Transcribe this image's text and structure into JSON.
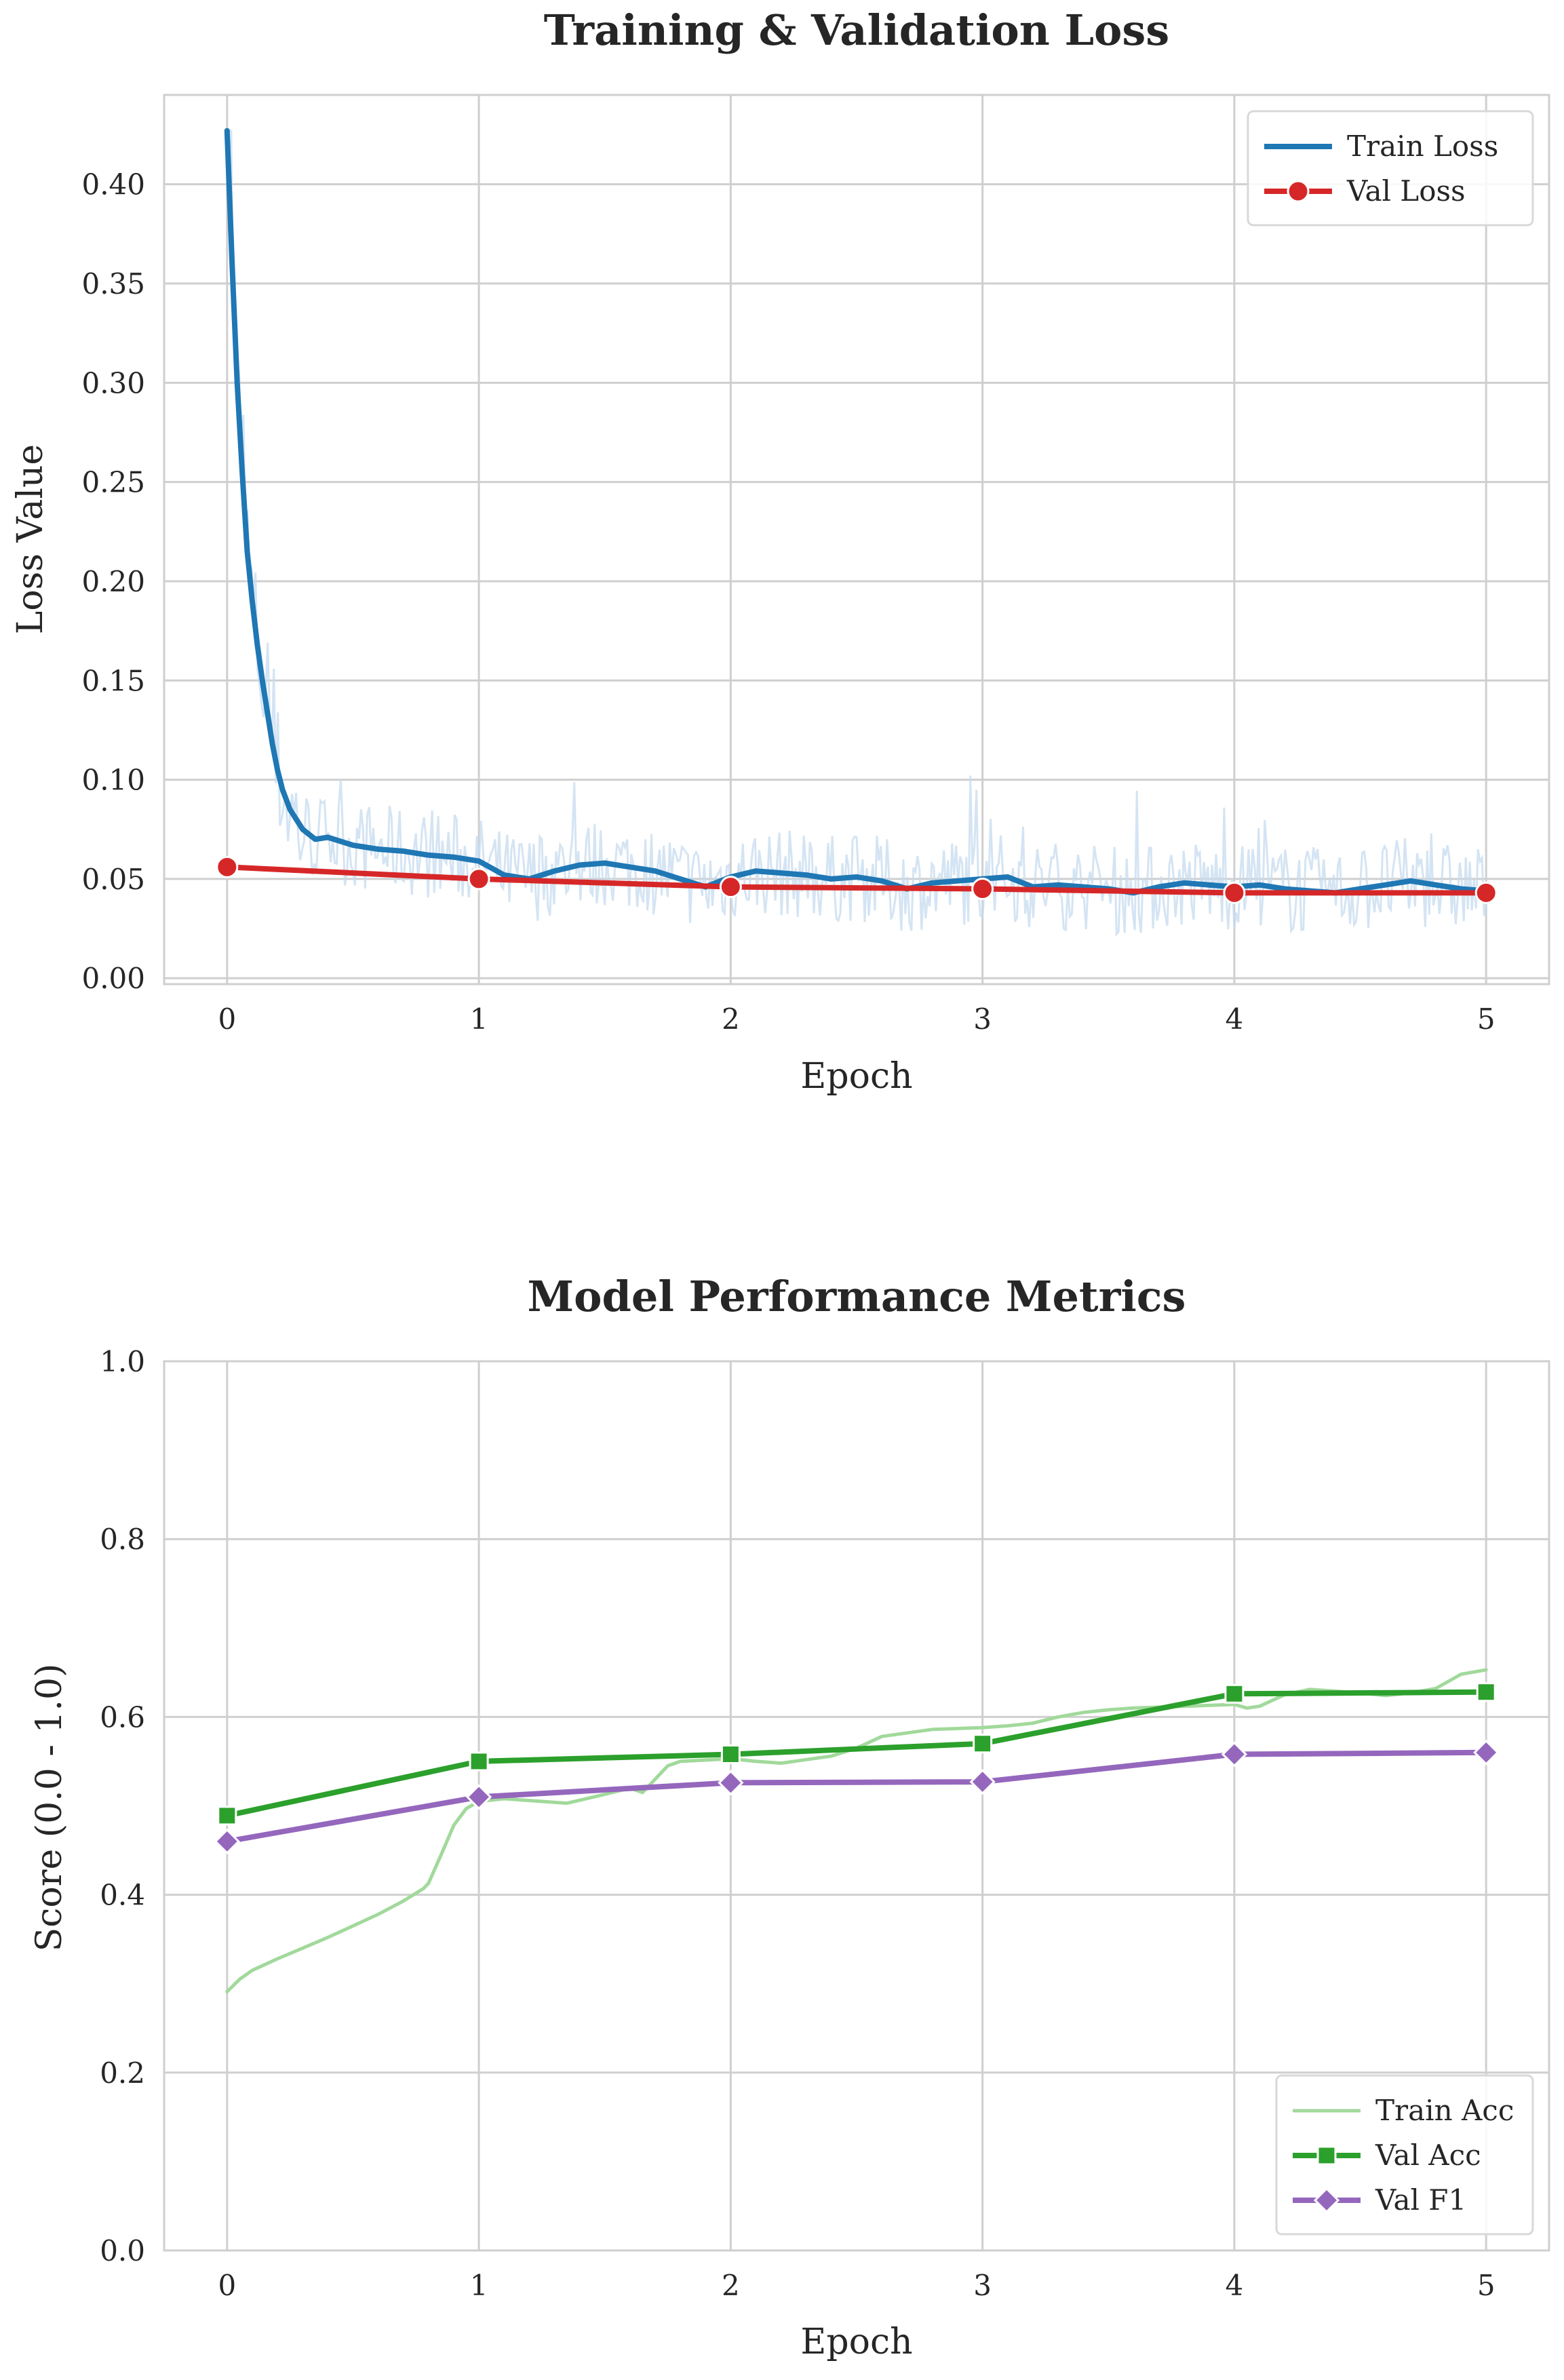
{
  "chart_data": [
    {
      "type": "line",
      "title": "Training & Validation Loss",
      "xlabel": "Epoch",
      "ylabel": "Loss Value",
      "xlim": [
        -0.25,
        5.25
      ],
      "ylim": [
        -0.003,
        0.445
      ],
      "xticks": [
        "0",
        "1",
        "2",
        "3",
        "4",
        "5"
      ],
      "yticks": [
        "0.00",
        "0.05",
        "0.10",
        "0.15",
        "0.20",
        "0.25",
        "0.30",
        "0.35",
        "0.40"
      ],
      "grid": true,
      "legend": "top-right",
      "series": [
        {
          "name": "Train Loss",
          "color": "#1f77b4",
          "marker": "none",
          "raw_band_color": "#c6dbef",
          "x": [
            0,
            0.02,
            0.04,
            0.06,
            0.08,
            0.1,
            0.12,
            0.14,
            0.16,
            0.18,
            0.2,
            0.22,
            0.25,
            0.3,
            0.35,
            0.4,
            0.5,
            0.6,
            0.7,
            0.8,
            0.9,
            1.0,
            1.1,
            1.2,
            1.3,
            1.4,
            1.5,
            1.6,
            1.7,
            1.8,
            1.9,
            2.0,
            2.1,
            2.2,
            2.3,
            2.4,
            2.5,
            2.6,
            2.7,
            2.8,
            2.9,
            3.0,
            3.1,
            3.2,
            3.3,
            3.4,
            3.5,
            3.6,
            3.7,
            3.8,
            3.9,
            4.0,
            4.1,
            4.2,
            4.3,
            4.4,
            4.5,
            4.6,
            4.7,
            4.8,
            4.9,
            5.0
          ],
          "values": [
            0.427,
            0.36,
            0.3,
            0.255,
            0.215,
            0.19,
            0.168,
            0.15,
            0.134,
            0.118,
            0.105,
            0.095,
            0.085,
            0.075,
            0.07,
            0.071,
            0.067,
            0.065,
            0.064,
            0.062,
            0.061,
            0.059,
            0.052,
            0.05,
            0.054,
            0.057,
            0.058,
            0.056,
            0.054,
            0.05,
            0.046,
            0.051,
            0.054,
            0.053,
            0.052,
            0.05,
            0.051,
            0.049,
            0.045,
            0.048,
            0.049,
            0.05,
            0.051,
            0.046,
            0.047,
            0.046,
            0.045,
            0.043,
            0.046,
            0.048,
            0.047,
            0.046,
            0.047,
            0.045,
            0.044,
            0.043,
            0.045,
            0.047,
            0.049,
            0.047,
            0.045,
            0.044
          ]
        },
        {
          "name": "Val Loss",
          "color": "#d62728",
          "marker": "circle",
          "x": [
            0,
            1,
            2,
            3,
            4,
            5
          ],
          "values": [
            0.056,
            0.05,
            0.046,
            0.045,
            0.043,
            0.043
          ]
        }
      ]
    },
    {
      "type": "line",
      "title": "Model Performance Metrics",
      "xlabel": "Epoch",
      "ylabel": "Score (0.0 - 1.0)",
      "xlim": [
        -0.25,
        5.25
      ],
      "ylim": [
        0.0,
        1.0
      ],
      "xticks": [
        "0",
        "1",
        "2",
        "3",
        "4",
        "5"
      ],
      "yticks": [
        "0.0",
        "0.2",
        "0.4",
        "0.6",
        "0.8",
        "1.0"
      ],
      "grid": true,
      "legend": "bottom-right",
      "series": [
        {
          "name": "Train Acc",
          "color": "#a1d99b",
          "marker": "none",
          "x": [
            0,
            0.05,
            0.1,
            0.2,
            0.3,
            0.4,
            0.5,
            0.6,
            0.7,
            0.78,
            0.8,
            0.85,
            0.9,
            0.95,
            1.0,
            1.1,
            1.2,
            1.35,
            1.5,
            1.6,
            1.65,
            1.7,
            1.75,
            1.8,
            2.0,
            2.1,
            2.2,
            2.3,
            2.4,
            2.5,
            2.6,
            2.8,
            3.0,
            3.1,
            3.2,
            3.3,
            3.4,
            3.5,
            3.6,
            3.8,
            4.0,
            4.05,
            4.1,
            4.2,
            4.3,
            4.5,
            4.6,
            4.7,
            4.8,
            4.85,
            4.9,
            5.0
          ],
          "values": [
            0.291,
            0.305,
            0.315,
            0.328,
            0.34,
            0.352,
            0.365,
            0.378,
            0.393,
            0.407,
            0.413,
            0.445,
            0.478,
            0.497,
            0.505,
            0.508,
            0.506,
            0.503,
            0.513,
            0.52,
            0.515,
            0.53,
            0.545,
            0.55,
            0.553,
            0.55,
            0.548,
            0.552,
            0.556,
            0.565,
            0.578,
            0.586,
            0.588,
            0.59,
            0.593,
            0.6,
            0.605,
            0.608,
            0.61,
            0.612,
            0.614,
            0.61,
            0.612,
            0.625,
            0.631,
            0.627,
            0.624,
            0.627,
            0.632,
            0.64,
            0.648,
            0.653
          ]
        },
        {
          "name": "Val Acc",
          "color": "#2ca02c",
          "marker": "square",
          "x": [
            0,
            1,
            2,
            3,
            4,
            5
          ],
          "values": [
            0.489,
            0.55,
            0.558,
            0.57,
            0.626,
            0.628
          ]
        },
        {
          "name": "Val F1",
          "color": "#9467bd",
          "marker": "diamond",
          "x": [
            0,
            1,
            2,
            3,
            4,
            5
          ],
          "values": [
            0.46,
            0.51,
            0.526,
            0.527,
            0.558,
            0.56
          ]
        }
      ]
    }
  ]
}
